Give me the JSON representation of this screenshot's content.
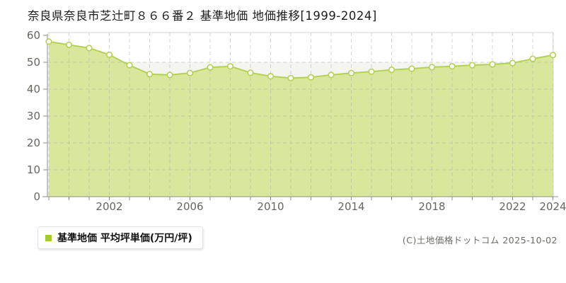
{
  "title": "奈良県奈良市芝辻町８６６番２ 基準地価 地価推移[1999-2024]",
  "legend": {
    "label": "基準地価 平均坪単価(万円/坪)"
  },
  "footer": {
    "copyright": "(C)土地価格ドットコム 2025-10-02"
  },
  "chart_data": {
    "type": "area",
    "title": "奈良県奈良市芝辻町８６６番２ 基準地価 地価推移[1999-2024]",
    "x": [
      1999,
      2000,
      2001,
      2002,
      2003,
      2004,
      2005,
      2006,
      2007,
      2008,
      2009,
      2010,
      2011,
      2012,
      2013,
      2014,
      2015,
      2016,
      2017,
      2018,
      2019,
      2020,
      2021,
      2022,
      2023,
      2024
    ],
    "series": [
      {
        "name": "基準地価 平均坪単価(万円/坪)",
        "values": [
          57.7,
          56.5,
          55.3,
          52.8,
          48.9,
          45.6,
          45.3,
          46.0,
          48.1,
          48.5,
          46.1,
          44.8,
          44.1,
          44.4,
          45.3,
          46.0,
          46.5,
          47.2,
          47.6,
          48.2,
          48.5,
          48.9,
          49.2,
          49.7,
          51.3,
          52.7
        ]
      }
    ],
    "xlabel": "",
    "ylabel": "",
    "ylim": [
      0,
      60
    ],
    "y_tick_step": 10,
    "y_tick_labels": [
      "0",
      "10",
      "20",
      "30",
      "40",
      "50",
      "60"
    ],
    "x_ticks": [
      2002,
      2006,
      2010,
      2014,
      2018,
      2022,
      2024
    ],
    "x_tick_labels": [
      "2002",
      "2006",
      "2010",
      "2014",
      "2018",
      "2022",
      "2024"
    ],
    "grid": "dashed, every year vertical and every 10 units horizontal",
    "legend_position": "bottom-left",
    "colors": {
      "area_fill": "#d8e79b",
      "line": "#b4d156",
      "marker_fill": "#fefef6",
      "marker_stroke": "#b4d156",
      "legend_marker": "#a3cc2a",
      "band": "#f4f4f0",
      "grid": "#b2b2ab",
      "axis": "#8d8d87",
      "border": "#d6d6d2",
      "tick_text": "#66665f"
    }
  }
}
